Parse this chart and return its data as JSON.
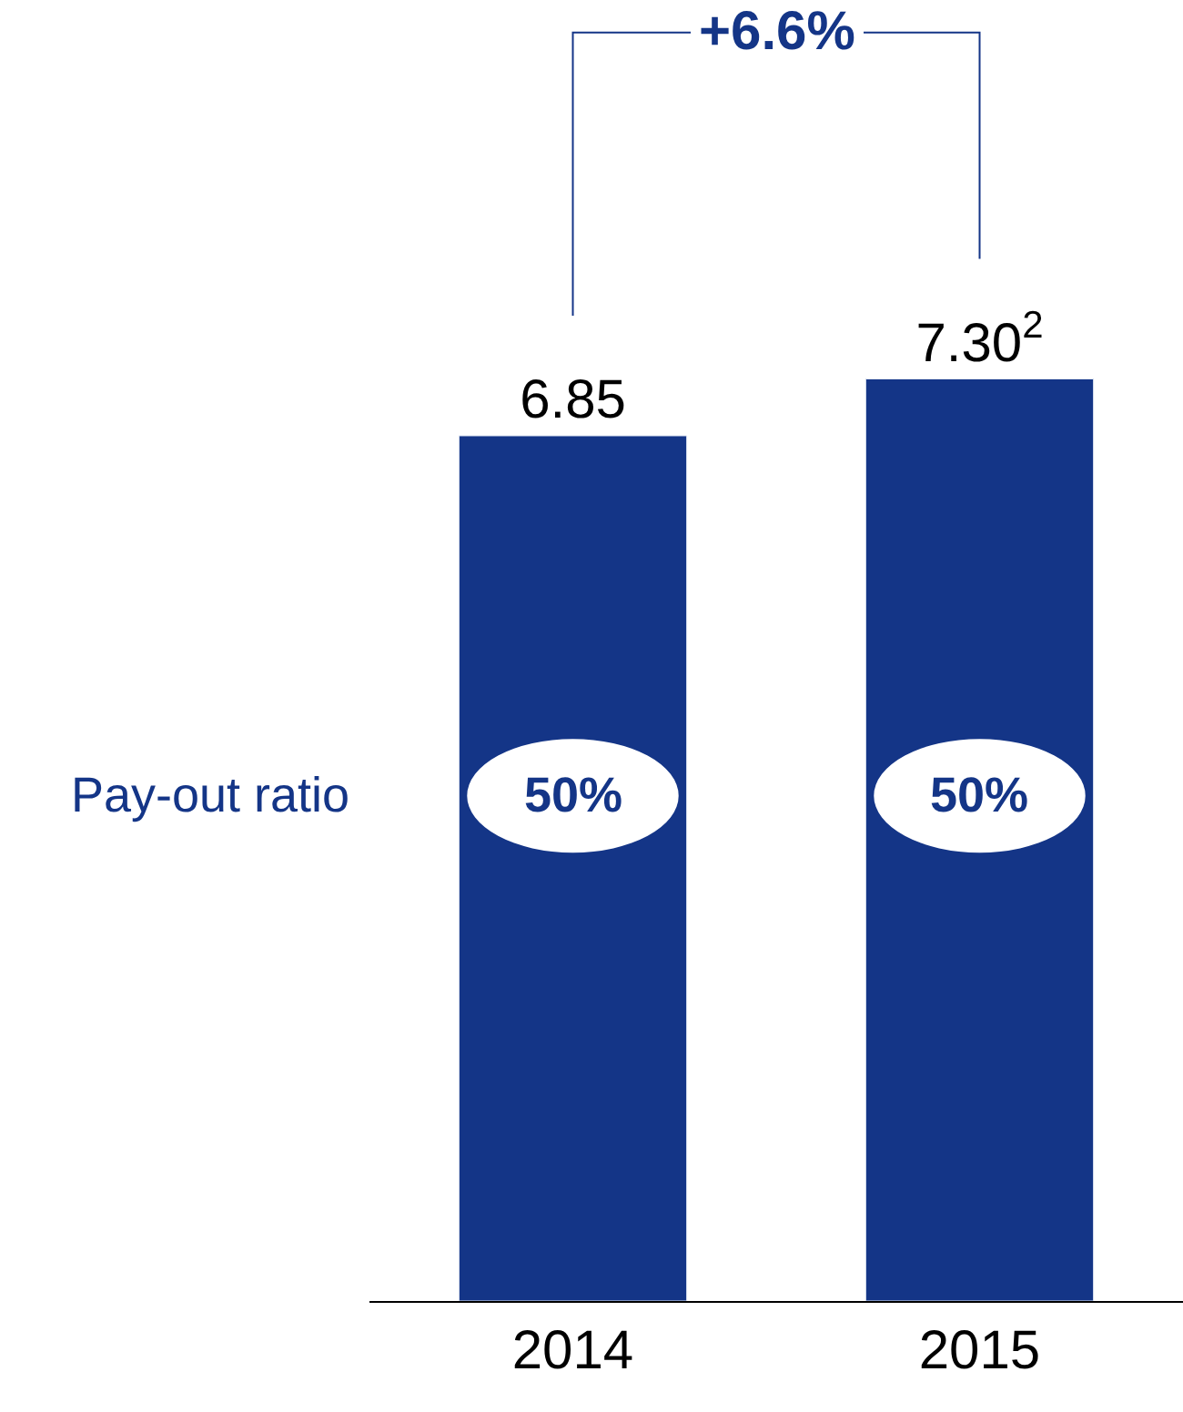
{
  "chart_data": {
    "type": "bar",
    "categories": [
      "2014",
      "2015"
    ],
    "values": [
      6.85,
      7.3
    ],
    "value_labels": [
      "6.85",
      "7.30$^{2}$"
    ],
    "color": "#143587",
    "ylim": [
      0,
      10.3
    ],
    "tick_labels": "x",
    "annotations": [
      "+6.6%",
      "Pay-out ratio",
      "50%",
      "50%"
    ]
  }
}
